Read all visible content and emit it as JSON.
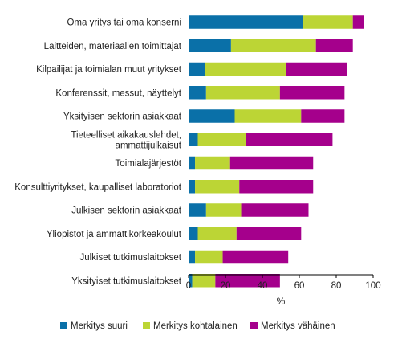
{
  "chart_data": {
    "type": "bar",
    "orientation": "horizontal",
    "stacked": true,
    "categories": [
      [
        "Oma yritys tai oma konserni"
      ],
      [
        "Laitteiden, materiaalien toimittajat"
      ],
      [
        "Kilpailijat ja toimialan muut yritykset"
      ],
      [
        "Konferenssit, messut, näyttelyt"
      ],
      [
        "Yksityisen sektorin asiakkaat"
      ],
      [
        "Tieteelliset aikakauslehdet,",
        "ammattijulkaisut"
      ],
      [
        "Toimialajärjestöt"
      ],
      [
        "Konsulttiyritykset, kaupalliset laboratoriot"
      ],
      [
        "Julkisen sektorin asiakkaat"
      ],
      [
        "Yliopistot ja ammattikorkeakoulut"
      ],
      [
        "Julkiset tutkimuslaitokset"
      ],
      [
        "Yksityiset tutkimuslaitokset"
      ]
    ],
    "series": [
      {
        "name": "Merkitys suuri",
        "color": "#0a70a8",
        "values": [
          62,
          23,
          9,
          9.5,
          25,
          5,
          3.5,
          3.5,
          9.5,
          5,
          3.5,
          2
        ]
      },
      {
        "name": "Merkitys kohtalainen",
        "color": "#bcd535",
        "values": [
          27,
          46,
          44,
          40,
          36,
          26,
          19,
          24,
          19,
          21,
          15,
          12.5
        ]
      },
      {
        "name": "Merkitys vähäinen",
        "color": "#a5008c",
        "values": [
          6,
          20,
          33,
          35,
          23.5,
          47,
          45,
          40,
          36.5,
          35,
          35.5,
          35
        ]
      }
    ],
    "xlabel": "%",
    "xlim": [
      0,
      100
    ],
    "xticks": [
      0,
      20,
      40,
      60,
      80,
      100
    ],
    "grid": false,
    "legend": "bottom"
  }
}
